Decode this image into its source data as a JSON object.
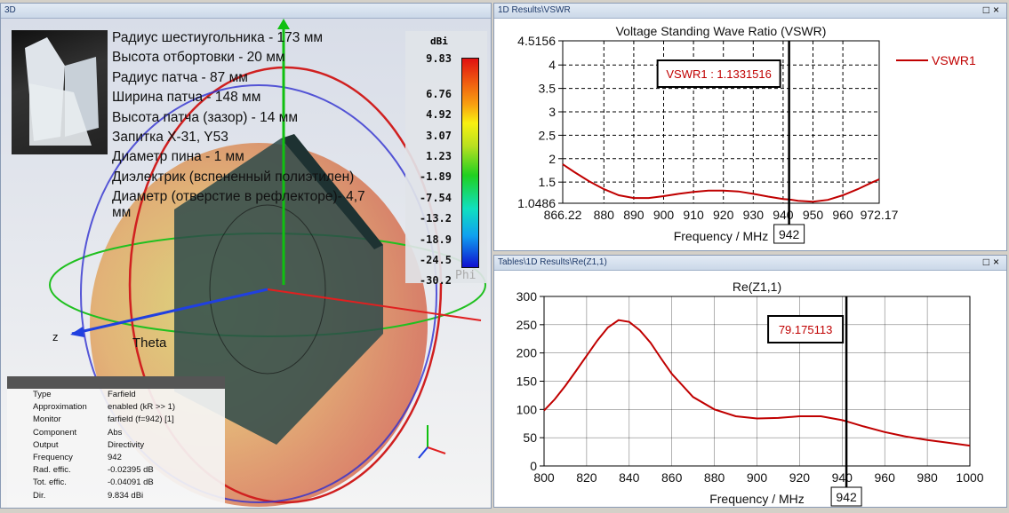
{
  "left_panel": {
    "title": "3D",
    "info_lines": [
      "Радиус шестиугольника - 173 мм",
      "Высота отбортовки - 20 мм",
      "Радиус патча - 87 мм",
      "Ширина патча - 148 мм",
      "Высота патча (зазор) - 14 мм",
      "Запитка X-31, Y53",
      "Диаметр пина - 1 мм",
      "Диэлектрик (вспененный полиэтилен)",
      "Диаметр (отверстие в рефлекторе)- 4,7",
      "мм"
    ],
    "colorbar": {
      "unit": "dBi",
      "labels": [
        "9.83",
        "6.76",
        "4.92",
        "3.07",
        "1.23",
        "-1.89",
        "-7.54",
        "-13.2",
        "-18.9",
        "-24.5",
        "-30.2"
      ]
    },
    "axis_labels": {
      "z": "z",
      "theta": "Theta",
      "phi": "Phi"
    },
    "properties": [
      {
        "key": "Type",
        "value": "Farfield"
      },
      {
        "key": "Approximation",
        "value": "enabled (kR >> 1)"
      },
      {
        "key": "Monitor",
        "value": "farfield (f=942) [1]"
      },
      {
        "key": "Component",
        "value": "Abs"
      },
      {
        "key": "Output",
        "value": "Directivity"
      },
      {
        "key": "Frequency",
        "value": "942"
      },
      {
        "key": "Rad. effic.",
        "value": "-0.02395 dB"
      },
      {
        "key": "Tot. effic.",
        "value": "-0.04091 dB"
      },
      {
        "key": "Dir.",
        "value": "9.834 dBi"
      }
    ]
  },
  "window_buttons": {
    "maximize": "□",
    "close": "×"
  },
  "chart_data": [
    {
      "type": "line",
      "panel_title": "1D Results\\VSWR",
      "title": "Voltage Standing Wave Ratio (VSWR)",
      "xlabel": "Frequency / MHz",
      "ylabel": "",
      "xlim": [
        866.22,
        972.17
      ],
      "ylim": [
        1.0486,
        4.5156
      ],
      "xticks": [
        "866.22",
        "880",
        "890",
        "900",
        "910",
        "920",
        "930",
        "940",
        "950",
        "960",
        "972.17"
      ],
      "xtick_values": [
        866.22,
        880,
        890,
        900,
        910,
        920,
        930,
        940,
        950,
        960,
        972.17
      ],
      "yticks": [
        "4.5156",
        "4",
        "3.5",
        "3",
        "2.5",
        "2",
        "1.5",
        "1.0486"
      ],
      "ytick_values": [
        4.5156,
        4,
        3.5,
        3,
        2.5,
        2,
        1.5,
        1.0486
      ],
      "legend": "VSWR1",
      "legend_position": "top-right",
      "color": "#c00000",
      "marker": {
        "x": 942,
        "x_label": "942",
        "label": "VSWR1 : 1.1331516"
      },
      "x": [
        866.22,
        870,
        875,
        880,
        885,
        890,
        895,
        900,
        905,
        910,
        915,
        920,
        925,
        930,
        935,
        940,
        942,
        945,
        950,
        955,
        960,
        965,
        970,
        972.17
      ],
      "y": [
        1.88,
        1.72,
        1.52,
        1.35,
        1.22,
        1.16,
        1.16,
        1.2,
        1.25,
        1.29,
        1.32,
        1.32,
        1.3,
        1.25,
        1.19,
        1.14,
        1.13,
        1.1,
        1.08,
        1.12,
        1.22,
        1.35,
        1.5,
        1.56
      ]
    },
    {
      "type": "line",
      "panel_title": "Tables\\1D Results\\Re(Z1,1)",
      "title": "Re(Z1,1)",
      "xlabel": "Frequency / MHz",
      "ylabel": "",
      "xlim": [
        800,
        1000
      ],
      "ylim": [
        0,
        300
      ],
      "xticks": [
        "800",
        "820",
        "840",
        "860",
        "880",
        "900",
        "920",
        "940",
        "960",
        "980",
        "1000"
      ],
      "xtick_values": [
        800,
        820,
        840,
        860,
        880,
        900,
        920,
        940,
        960,
        980,
        1000
      ],
      "yticks": [
        "300",
        "250",
        "200",
        "150",
        "100",
        "50",
        "0"
      ],
      "ytick_values": [
        300,
        250,
        200,
        150,
        100,
        50,
        0
      ],
      "color": "#c00000",
      "marker": {
        "x": 942,
        "x_label": "942",
        "label": "79.175113"
      },
      "x": [
        800,
        805,
        810,
        815,
        820,
        825,
        830,
        835,
        840,
        845,
        850,
        855,
        860,
        870,
        880,
        890,
        900,
        910,
        920,
        930,
        940,
        942,
        950,
        960,
        970,
        980,
        990,
        1000
      ],
      "y": [
        98,
        118,
        142,
        168,
        195,
        222,
        245,
        258,
        255,
        240,
        218,
        190,
        163,
        122,
        100,
        88,
        84,
        85,
        88,
        88,
        81,
        79,
        70,
        60,
        52,
        46,
        41,
        36
      ]
    }
  ]
}
